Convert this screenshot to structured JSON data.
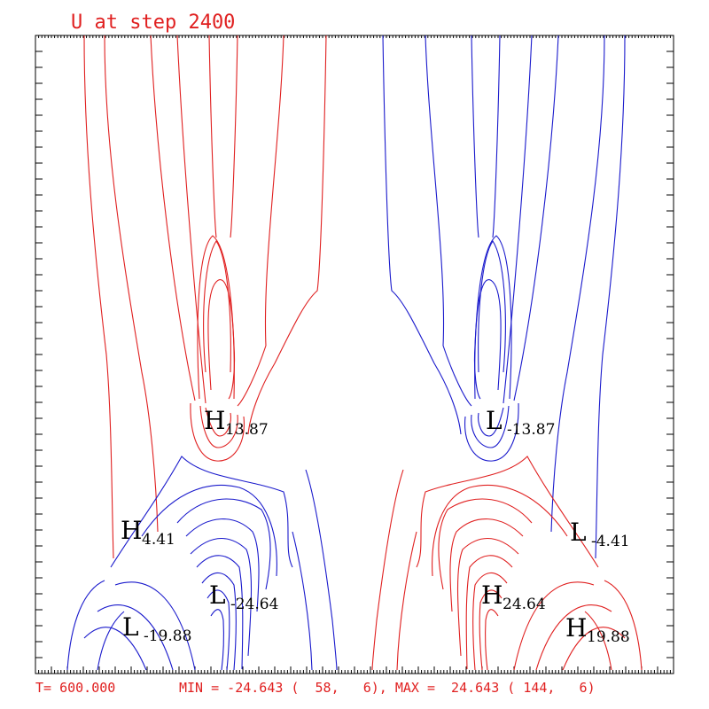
{
  "header": {
    "title": "U at step 2400"
  },
  "footer": {
    "time": "T= 600.000",
    "minmax": "MIN = -24.643 (  58,   6), MAX =  24.643 ( 144,   6)"
  },
  "colors": {
    "positive": "#e02020",
    "negative": "#1a1acc",
    "text": "#e02020",
    "frame": "#000000"
  },
  "chart_data": {
    "type": "contour",
    "title": "U at step 2400",
    "grid": {
      "nx": 200,
      "ny": 200
    },
    "min": {
      "value": -24.643,
      "i": 58,
      "j": 6
    },
    "max": {
      "value": 24.643,
      "i": 144,
      "j": 6
    },
    "extrema": [
      {
        "kind": "H",
        "letter": "H",
        "value": "13.87"
      },
      {
        "kind": "L",
        "letter": "L",
        "value": "-13.87"
      },
      {
        "kind": "H",
        "letter": "H",
        "value": "4.41"
      },
      {
        "kind": "L",
        "letter": "L",
        "value": "-4.41"
      },
      {
        "kind": "L",
        "letter": "L",
        "value": "-24.64"
      },
      {
        "kind": "H",
        "letter": "H",
        "value": "24.64"
      },
      {
        "kind": "L",
        "letter": "L",
        "value": "-19.88"
      },
      {
        "kind": "H",
        "letter": "H",
        "value": "19.88"
      }
    ]
  }
}
